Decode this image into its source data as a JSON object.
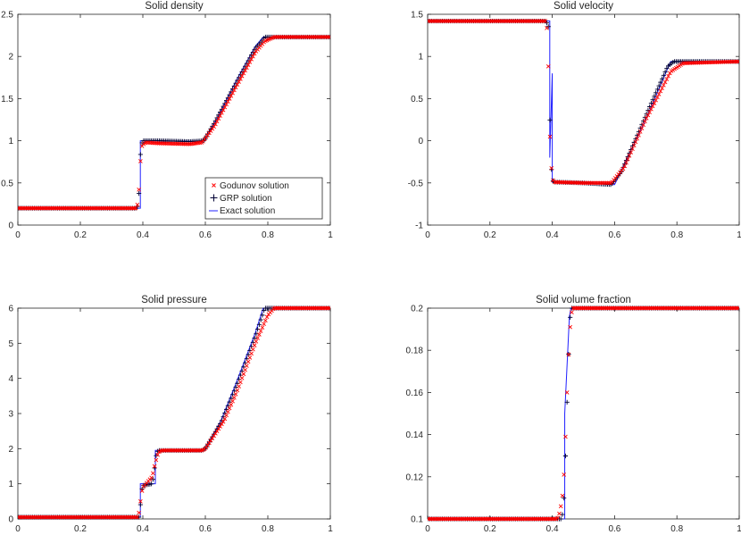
{
  "legend_labels": {
    "godunov": "Godunov solution",
    "grp": "GRP solution",
    "exact": "Exact solution"
  },
  "colors": {
    "godunov": "#ff0000",
    "grp": "#000033",
    "exact": "#2020ff",
    "axis": "#262626"
  },
  "chart_data": [
    {
      "type": "line",
      "title": "Solid density",
      "xlabel": "",
      "ylabel": "",
      "xlim": [
        0,
        1
      ],
      "ylim": [
        0,
        2.5
      ],
      "xticks": [
        0,
        0.2,
        0.4,
        0.6,
        0.8,
        1
      ],
      "xtick_labels": [
        "0",
        "0.2",
        "0.4",
        "0.6",
        "0.8",
        "1"
      ],
      "yticks": [
        0,
        0.5,
        1,
        1.5,
        2,
        2.5
      ],
      "ytick_labels": [
        "0",
        "0.5",
        "1",
        "1.5",
        "2",
        "2.5"
      ],
      "legend_position": "lower-right",
      "series": [
        {
          "name": "Exact solution",
          "x": [
            0,
            0.392,
            0.392,
            0.45,
            0.59,
            0.6,
            0.64,
            0.7,
            0.76,
            0.785,
            1
          ],
          "y": [
            0.2,
            0.2,
            1.0,
            1.0,
            0.99,
            1.02,
            1.28,
            1.72,
            2.12,
            2.23,
            2.23
          ]
        },
        {
          "name": "GRP solution",
          "x": [
            0,
            0.38,
            0.386,
            0.389,
            0.392,
            0.396,
            0.4,
            0.45,
            0.55,
            0.595,
            0.63,
            0.7,
            0.76,
            0.78,
            0.79,
            1
          ],
          "y": [
            0.2,
            0.2,
            0.25,
            0.5,
            0.82,
            0.96,
            1.0,
            1.0,
            0.99,
            1.0,
            1.22,
            1.7,
            2.1,
            2.18,
            2.23,
            2.23
          ]
        },
        {
          "name": "Godunov solution",
          "x": [
            0,
            0.38,
            0.386,
            0.39,
            0.394,
            0.398,
            0.41,
            0.45,
            0.55,
            0.59,
            0.63,
            0.7,
            0.76,
            0.79,
            0.82,
            1
          ],
          "y": [
            0.2,
            0.2,
            0.3,
            0.62,
            0.84,
            0.95,
            0.98,
            0.97,
            0.96,
            0.98,
            1.18,
            1.65,
            2.05,
            2.18,
            2.23,
            2.23
          ]
        }
      ]
    },
    {
      "type": "line",
      "title": "Solid velocity",
      "xlabel": "",
      "ylabel": "",
      "xlim": [
        0,
        1
      ],
      "ylim": [
        -1,
        1.5
      ],
      "xticks": [
        0,
        0.2,
        0.4,
        0.6,
        0.8,
        1
      ],
      "xtick_labels": [
        "0",
        "0.2",
        "0.4",
        "0.6",
        "0.8",
        "1"
      ],
      "yticks": [
        -1,
        -0.5,
        0,
        0.5,
        1,
        1.5
      ],
      "ytick_labels": [
        "-1",
        "-0.5",
        "0",
        "0.5",
        "1",
        "1.5"
      ],
      "series": [
        {
          "name": "Exact solution",
          "x": [
            0,
            0.392,
            0.392,
            0.4,
            0.4,
            0.5,
            0.6,
            0.7,
            0.78,
            1
          ],
          "y": [
            1.42,
            1.42,
            -0.2,
            0.8,
            -0.49,
            -0.5,
            -0.52,
            0.25,
            0.94,
            0.94
          ]
        },
        {
          "name": "GRP solution",
          "x": [
            0,
            0.38,
            0.388,
            0.392,
            0.396,
            0.4,
            0.405,
            0.5,
            0.59,
            0.62,
            0.7,
            0.77,
            0.79,
            1
          ],
          "y": [
            1.42,
            1.42,
            1.35,
            0.32,
            -0.27,
            -0.46,
            -0.49,
            -0.5,
            -0.52,
            -0.38,
            0.3,
            0.88,
            0.94,
            0.94
          ]
        },
        {
          "name": "Godunov solution",
          "x": [
            0,
            0.38,
            0.386,
            0.39,
            0.392,
            0.394,
            0.397,
            0.4,
            0.405,
            0.5,
            0.59,
            0.63,
            0.7,
            0.78,
            0.82,
            1
          ],
          "y": [
            1.42,
            1.42,
            1.22,
            0.32,
            0.08,
            -0.05,
            -0.3,
            -0.45,
            -0.49,
            -0.5,
            -0.5,
            -0.32,
            0.25,
            0.82,
            0.92,
            0.94
          ]
        }
      ]
    },
    {
      "type": "line",
      "title": "Solid pressure",
      "xlabel": "",
      "ylabel": "",
      "xlim": [
        0,
        1
      ],
      "ylim": [
        0,
        6
      ],
      "xticks": [
        0,
        0.2,
        0.4,
        0.6,
        0.8,
        1
      ],
      "xtick_labels": [
        "0",
        "0.2",
        "0.4",
        "0.6",
        "0.8",
        "1"
      ],
      "yticks": [
        0,
        1,
        2,
        3,
        4,
        5,
        6
      ],
      "ytick_labels": [
        "0",
        "1",
        "2",
        "3",
        "4",
        "5",
        "6"
      ],
      "series": [
        {
          "name": "Exact solution",
          "x": [
            0,
            0.392,
            0.392,
            0.44,
            0.44,
            0.59,
            0.6,
            0.65,
            0.7,
            0.76,
            0.785,
            1
          ],
          "y": [
            0.05,
            0.05,
            1.0,
            1.0,
            1.95,
            1.95,
            2.0,
            2.8,
            3.9,
            5.3,
            6.0,
            6.0
          ]
        },
        {
          "name": "GRP solution",
          "x": [
            0,
            0.388,
            0.392,
            0.396,
            0.4,
            0.43,
            0.436,
            0.44,
            0.445,
            0.45,
            0.59,
            0.6,
            0.65,
            0.7,
            0.76,
            0.79,
            1
          ],
          "y": [
            0.05,
            0.05,
            0.35,
            0.8,
            0.95,
            1.0,
            1.3,
            1.7,
            1.9,
            1.95,
            1.95,
            2.0,
            2.75,
            3.8,
            5.2,
            6.0,
            6.0
          ]
        },
        {
          "name": "Godunov solution",
          "x": [
            0,
            0.385,
            0.39,
            0.395,
            0.4,
            0.41,
            0.43,
            0.44,
            0.45,
            0.46,
            0.59,
            0.6,
            0.66,
            0.7,
            0.76,
            0.8,
            0.82,
            1
          ],
          "y": [
            0.05,
            0.05,
            0.3,
            0.7,
            0.9,
            1.0,
            1.2,
            1.6,
            1.9,
            1.95,
            1.95,
            2.0,
            2.8,
            3.6,
            5.0,
            5.8,
            6.0,
            6.0
          ]
        }
      ]
    },
    {
      "type": "line",
      "title": "Solid volume fraction",
      "xlabel": "",
      "ylabel": "",
      "xlim": [
        0,
        1
      ],
      "ylim": [
        0.1,
        0.2
      ],
      "xticks": [
        0,
        0.2,
        0.4,
        0.6,
        0.8,
        1
      ],
      "xtick_labels": [
        "0",
        "0.2",
        "0.4",
        "0.6",
        "0.8",
        "1"
      ],
      "yticks": [
        0.1,
        0.12,
        0.14,
        0.16,
        0.18,
        0.2
      ],
      "ytick_labels": [
        "0.1",
        "0.12",
        "0.14",
        "0.16",
        "0.18",
        "0.2"
      ],
      "series": [
        {
          "name": "Exact solution",
          "x": [
            0,
            0.44,
            0.44,
            0.455,
            0.46,
            1
          ],
          "y": [
            0.1,
            0.1,
            0.15,
            0.196,
            0.2,
            0.2
          ]
        },
        {
          "name": "GRP solution",
          "x": [
            0,
            0.43,
            0.436,
            0.44,
            0.444,
            0.448,
            0.452,
            0.456,
            0.46,
            1
          ],
          "y": [
            0.1,
            0.1,
            0.105,
            0.118,
            0.137,
            0.158,
            0.176,
            0.193,
            0.2,
            0.2
          ]
        },
        {
          "name": "Godunov solution",
          "x": [
            0,
            0.415,
            0.42,
            0.425,
            0.43,
            0.435,
            0.44,
            0.445,
            0.45,
            0.455,
            0.46,
            0.465,
            1
          ],
          "y": [
            0.1,
            0.1,
            0.101,
            0.104,
            0.108,
            0.114,
            0.128,
            0.15,
            0.17,
            0.186,
            0.196,
            0.2,
            0.2
          ]
        }
      ]
    }
  ]
}
